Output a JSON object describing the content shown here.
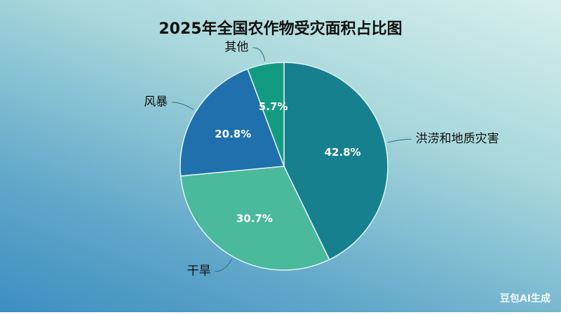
{
  "chart_data": {
    "type": "pie",
    "title": "2025年全国农作物受灾面积占比图",
    "categories": [
      "洪涝和地质灾害",
      "干旱",
      "风暴",
      "其他"
    ],
    "values": [
      42.8,
      30.7,
      20.8,
      5.7
    ],
    "value_labels": [
      "42.8%",
      "30.7%",
      "20.8%",
      "5.7%"
    ],
    "colors": [
      "#17808e",
      "#4bb99b",
      "#1f70ad",
      "#139b82"
    ]
  },
  "watermark": "豆包AI生成"
}
